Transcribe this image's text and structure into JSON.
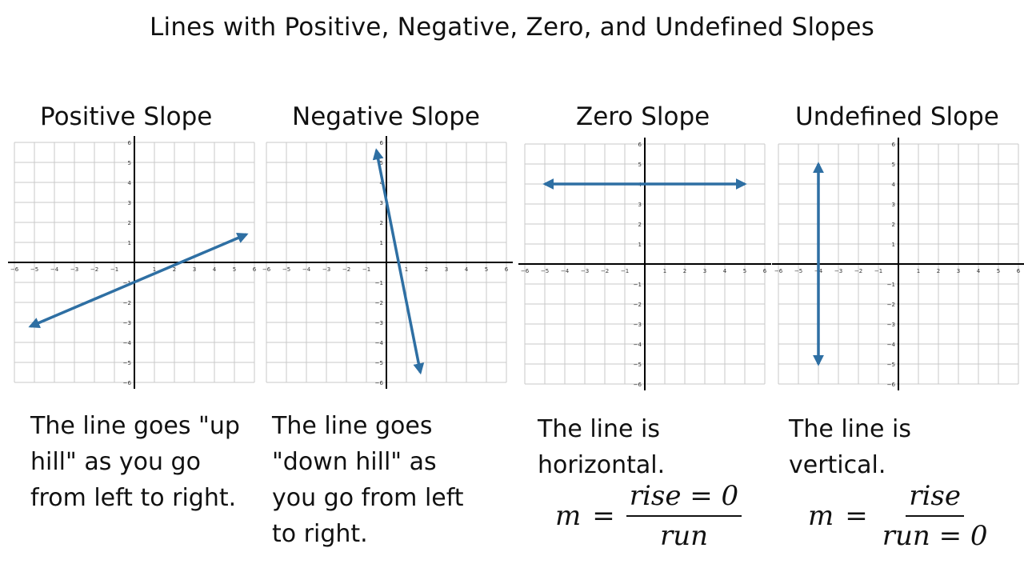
{
  "title": "Lines with Positive, Negative, Zero, and Undefined Slopes",
  "colors": {
    "line": "#2e6fa3",
    "grid": "#c8c8c8",
    "axis": "#000000"
  },
  "panels": [
    {
      "heading": "Positive Slope",
      "description": [
        "The line goes \"up",
        "hill\" as you go",
        "from left to right."
      ],
      "line": {
        "from": [
          -5.2,
          -3.2
        ],
        "to": [
          5.6,
          1.4
        ],
        "arrows": "both"
      }
    },
    {
      "heading": "Negative Slope",
      "description": [
        "The line goes",
        "\"down hill\" as",
        "you go from left",
        "to right."
      ],
      "line": {
        "from": [
          -0.5,
          5.6
        ],
        "to": [
          1.7,
          -5.5
        ],
        "arrows": "both"
      }
    },
    {
      "heading": "Zero Slope",
      "description": [
        "The line is",
        "horizontal."
      ],
      "line": {
        "from": [
          -5,
          4
        ],
        "to": [
          5,
          4
        ],
        "arrows": "both"
      },
      "formula": {
        "lhs": "m",
        "eq": "=",
        "num": "rise = 0",
        "den": "run"
      }
    },
    {
      "heading": "Undefined Slope",
      "description": [
        "The line is",
        "vertical."
      ],
      "line": {
        "from": [
          -4,
          5
        ],
        "to": [
          -4,
          -5
        ],
        "arrows": "both"
      },
      "formula": {
        "lhs": "m",
        "eq": "=",
        "num": "rise",
        "den": "run = 0"
      }
    }
  ],
  "axis": {
    "x_ticks": [
      "-6",
      "-5",
      "-4",
      "-3",
      "-2",
      "-1",
      "1",
      "2",
      "3",
      "4",
      "5",
      "6"
    ],
    "y_ticks": [
      "6",
      "5",
      "4",
      "3",
      "2",
      "1",
      "-1",
      "-2",
      "-3",
      "-4",
      "-5",
      "-6"
    ]
  }
}
